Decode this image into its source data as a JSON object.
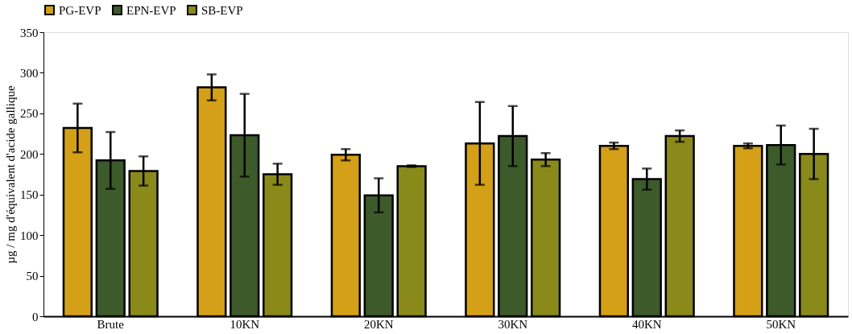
{
  "chart_data": {
    "type": "bar",
    "ylabel": "µg / mg d'équivalent d'acide gallique",
    "categories": [
      "Brute",
      "10KN",
      "20KN",
      "30KN",
      "40KN",
      "50KN"
    ],
    "series": [
      {
        "name": "PG-EVP",
        "color": "#d4a017",
        "values": [
          232,
          282,
          199,
          213,
          210,
          210
        ],
        "errors": [
          30,
          16,
          7,
          51,
          4,
          3
        ]
      },
      {
        "name": "EPN-EVP",
        "color": "#3d5a2a",
        "values": [
          192,
          223,
          149,
          222,
          169,
          211
        ],
        "errors": [
          35,
          51,
          21,
          37,
          13,
          24
        ]
      },
      {
        "name": "SB-EVP",
        "color": "#8a8a1a",
        "values": [
          179,
          175,
          185,
          193,
          222,
          200
        ],
        "errors": [
          18,
          13,
          1,
          8,
          7,
          31
        ]
      }
    ],
    "ylim": [
      0,
      350
    ],
    "yticks": [
      0,
      50,
      100,
      150,
      200,
      250,
      300,
      350
    ],
    "grid": false,
    "legend": "top"
  }
}
